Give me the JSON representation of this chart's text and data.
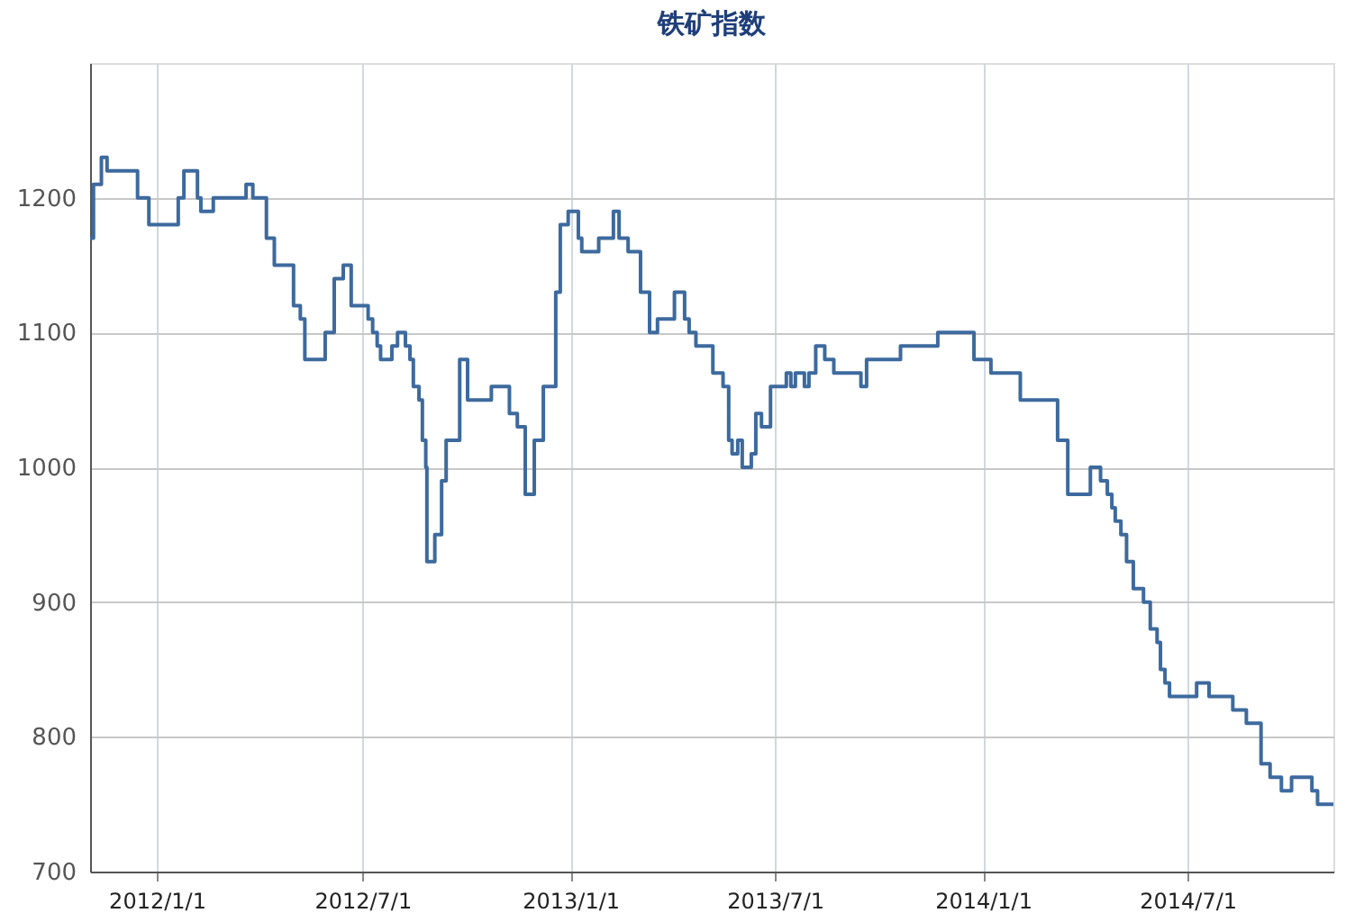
{
  "chart_data": {
    "type": "step",
    "title": "铁矿指数",
    "x": [
      "2011-11-03",
      "2011-11-06",
      "2011-11-13",
      "2011-11-18",
      "2011-12-15",
      "2011-12-25",
      "2012-01-20",
      "2012-01-25",
      "2012-02-06",
      "2012-02-09",
      "2012-02-20",
      "2012-03-20",
      "2012-03-26",
      "2012-04-07",
      "2012-04-14",
      "2012-05-01",
      "2012-05-07",
      "2012-05-11",
      "2012-05-29",
      "2012-06-06",
      "2012-06-14",
      "2012-06-21",
      "2012-07-06",
      "2012-07-10",
      "2012-07-14",
      "2012-07-17",
      "2012-07-27",
      "2012-08-01",
      "2012-08-08",
      "2012-08-12",
      "2012-08-15",
      "2012-08-20",
      "2012-08-23",
      "2012-08-26",
      "2012-08-27",
      "2012-09-03",
      "2012-09-09",
      "2012-09-13",
      "2012-09-25",
      "2012-10-02",
      "2012-10-23",
      "2012-11-08",
      "2012-11-15",
      "2012-11-22",
      "2012-11-30",
      "2012-12-08",
      "2012-12-19",
      "2012-12-23",
      "2012-12-30",
      "2013-01-08",
      "2013-01-11",
      "2013-01-26",
      "2013-02-08",
      "2013-02-13",
      "2013-02-21",
      "2013-03-04",
      "2013-03-12",
      "2013-03-19",
      "2013-04-03",
      "2013-04-12",
      "2013-04-16",
      "2013-04-22",
      "2013-05-07",
      "2013-05-16",
      "2013-05-21",
      "2013-05-24",
      "2013-05-29",
      "2013-06-02",
      "2013-06-10",
      "2013-06-14",
      "2013-06-19",
      "2013-06-27",
      "2013-07-11",
      "2013-07-15",
      "2013-07-19",
      "2013-07-27",
      "2013-07-31",
      "2013-08-06",
      "2013-08-14",
      "2013-08-22",
      "2013-09-15",
      "2013-09-20",
      "2013-10-20",
      "2013-11-22",
      "2013-12-24",
      "2014-01-08",
      "2014-02-03",
      "2014-03-08",
      "2014-03-17",
      "2014-04-06",
      "2014-04-15",
      "2014-04-21",
      "2014-04-25",
      "2014-04-28",
      "2014-05-03",
      "2014-05-08",
      "2014-05-14",
      "2014-05-23",
      "2014-05-29",
      "2014-06-04",
      "2014-06-07",
      "2014-06-11",
      "2014-06-15",
      "2014-07-09",
      "2014-07-20",
      "2014-08-10",
      "2014-08-22",
      "2014-09-04",
      "2014-09-12",
      "2014-09-22",
      "2014-10-01",
      "2014-10-19",
      "2014-10-24",
      "2014-11-07"
    ],
    "series": [
      {
        "color": "#3d6a9e",
        "values": [
          1170,
          1210,
          1230,
          1220,
          1200,
          1180,
          1200,
          1220,
          1200,
          1190,
          1200,
          1210,
          1200,
          1170,
          1150,
          1120,
          1110,
          1080,
          1100,
          1140,
          1150,
          1120,
          1110,
          1100,
          1090,
          1080,
          1090,
          1100,
          1090,
          1080,
          1060,
          1050,
          1020,
          1000,
          930,
          950,
          990,
          1020,
          1080,
          1050,
          1060,
          1040,
          1030,
          980,
          1020,
          1060,
          1130,
          1180,
          1190,
          1170,
          1160,
          1170,
          1190,
          1170,
          1160,
          1130,
          1100,
          1110,
          1130,
          1110,
          1100,
          1090,
          1070,
          1060,
          1020,
          1010,
          1020,
          1000,
          1010,
          1040,
          1030,
          1060,
          1070,
          1060,
          1070,
          1060,
          1070,
          1090,
          1080,
          1070,
          1060,
          1080,
          1090,
          1100,
          1080,
          1070,
          1050,
          1020,
          980,
          1000,
          990,
          980,
          970,
          960,
          950,
          930,
          910,
          900,
          880,
          870,
          850,
          840,
          830,
          840,
          830,
          820,
          810,
          780,
          770,
          760,
          770,
          760,
          750,
          750
        ]
      }
    ],
    "xlim": [
      "2011-11-03",
      "2014-11-07"
    ],
    "xticks": [
      {
        "value": "2012-01-01",
        "label": "2012/1/1"
      },
      {
        "value": "2012-07-01",
        "label": "2012/7/1"
      },
      {
        "value": "2013-01-01",
        "label": "2013/1/1"
      },
      {
        "value": "2013-07-01",
        "label": "2013/7/1"
      },
      {
        "value": "2014-01-01",
        "label": "2014/1/1"
      },
      {
        "value": "2014-07-01",
        "label": "2014/7/1"
      }
    ],
    "ylim": [
      700,
      1300
    ],
    "yticks": [
      700,
      800,
      900,
      1000,
      1100,
      1200
    ],
    "grid": true,
    "legend": false,
    "marker": "none",
    "line_style": "solid"
  }
}
